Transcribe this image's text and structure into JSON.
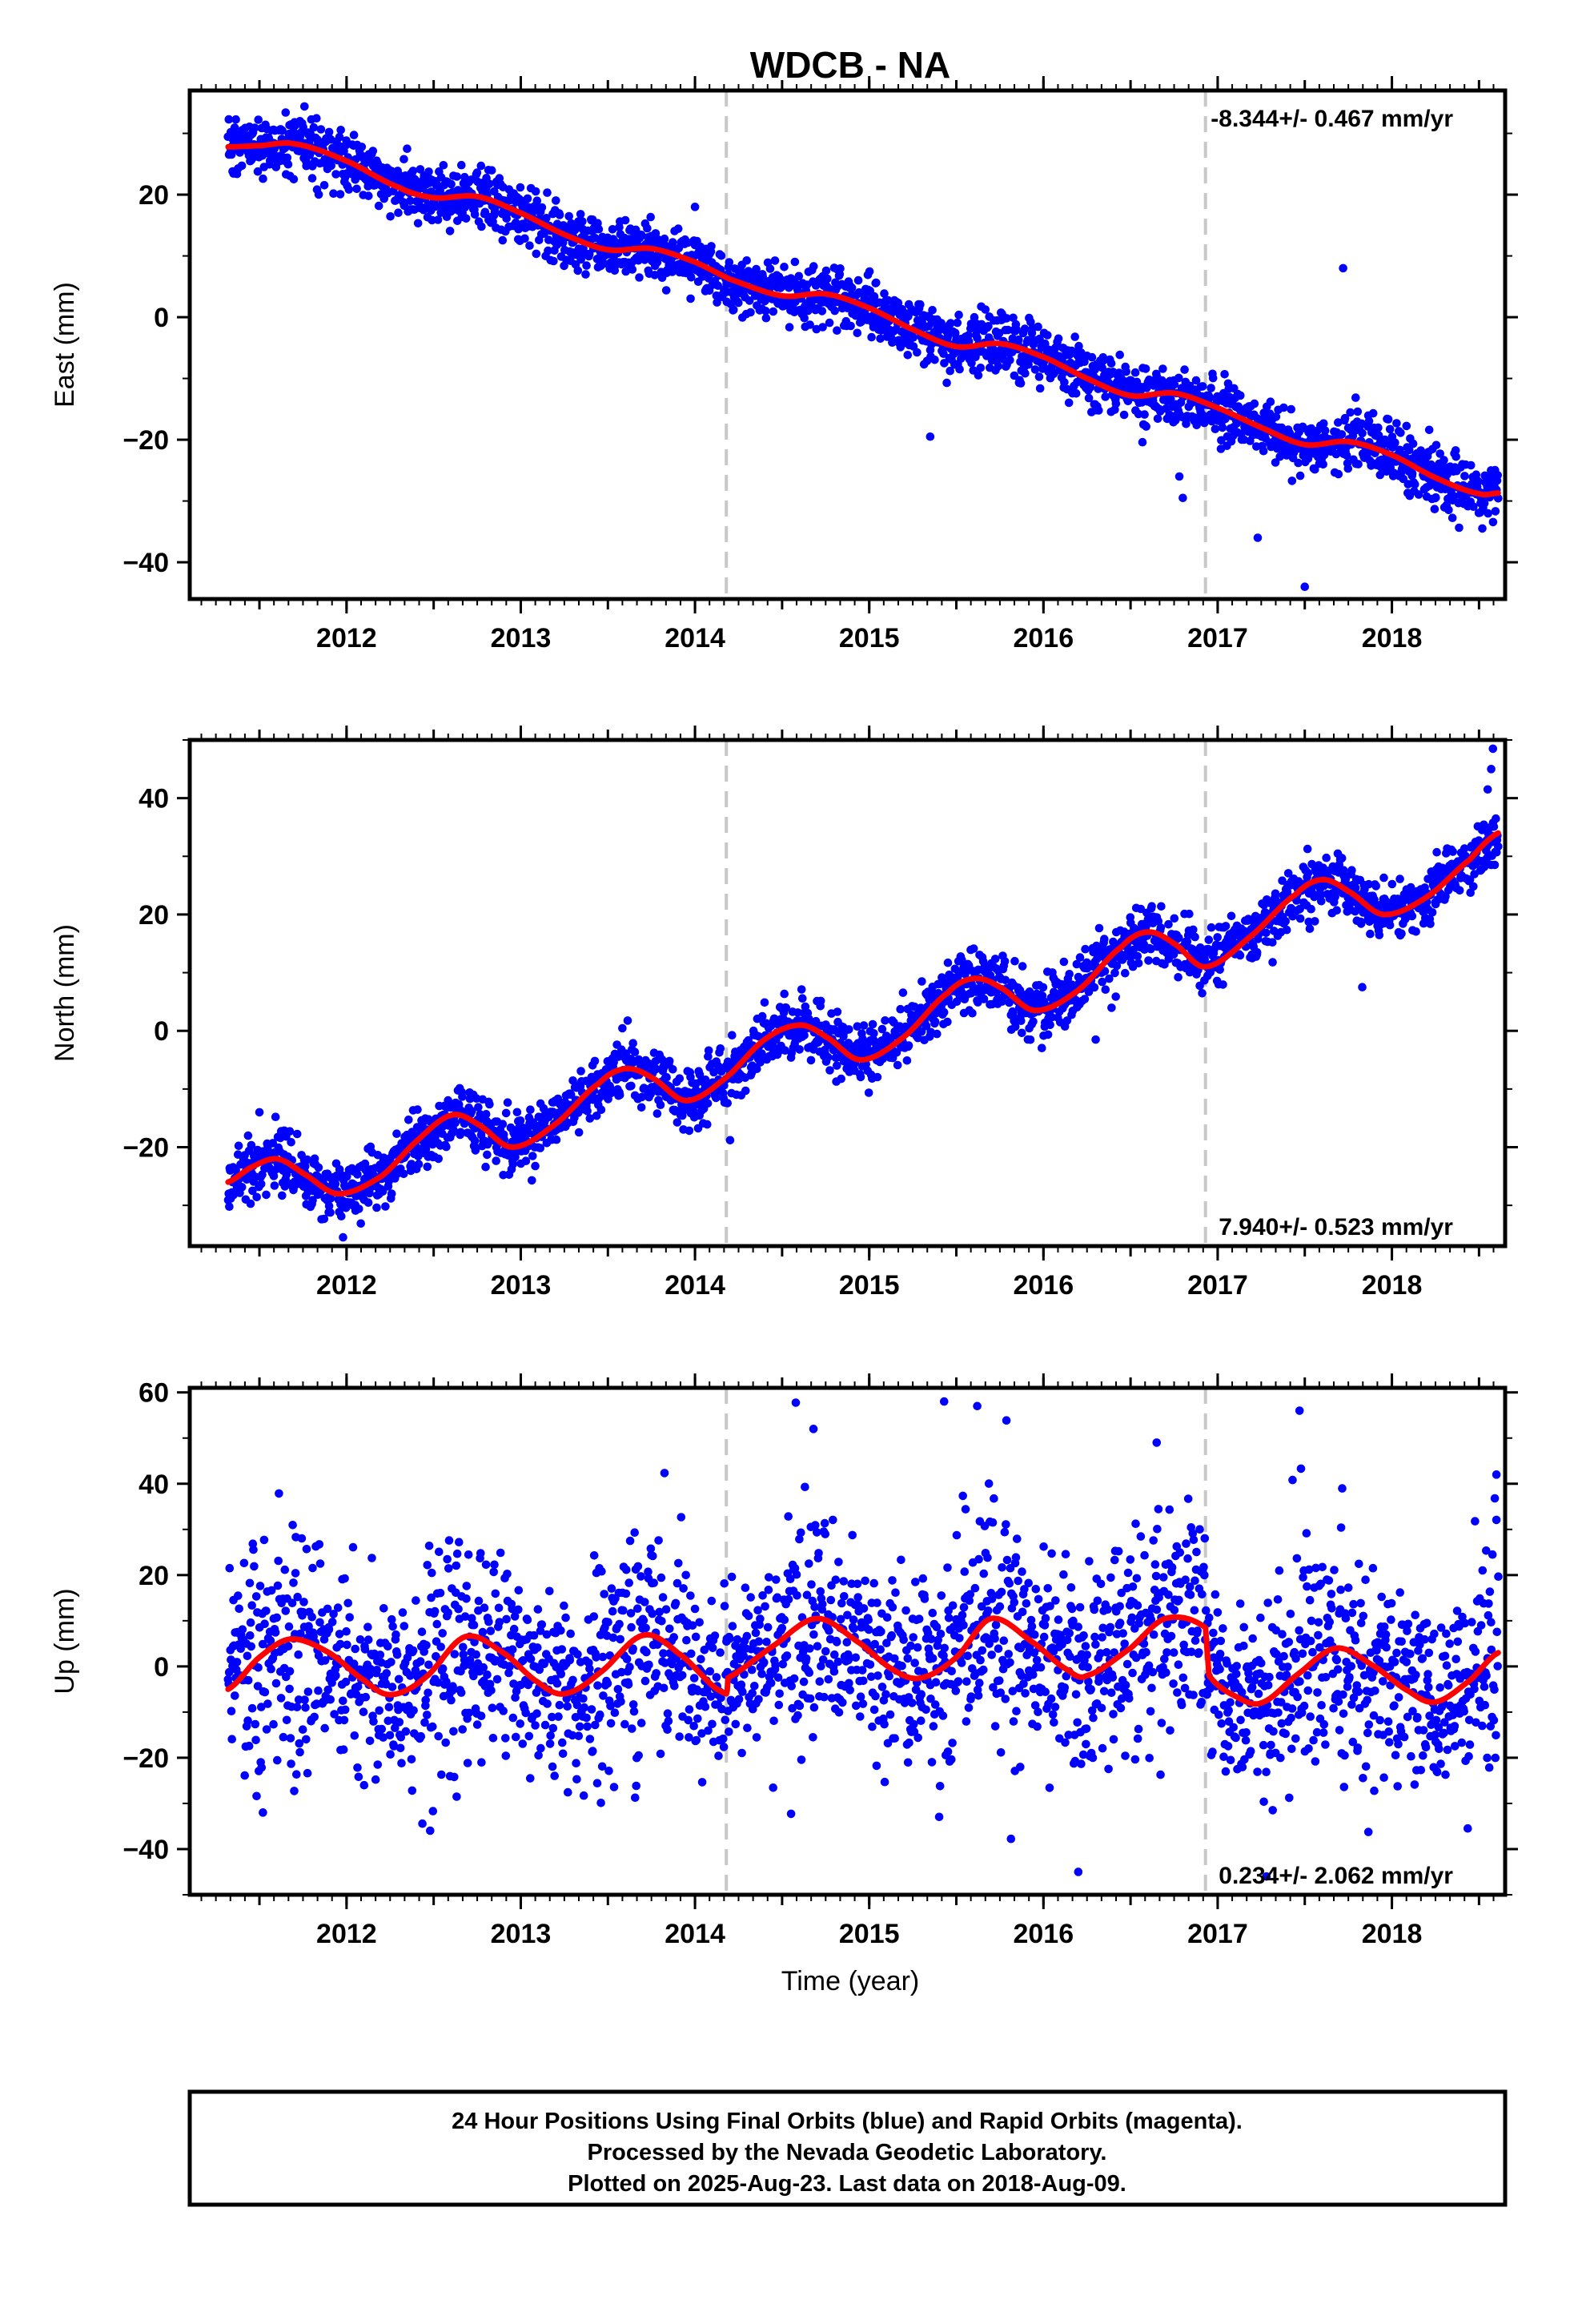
{
  "title": "WDCB - NA",
  "xlabel": "Time (year)",
  "footer": {
    "line1": "24 Hour Positions Using Final Orbits (blue) and Rapid Orbits (magenta).",
    "line2": "Processed by the Nevada Geodetic Laboratory.",
    "line3": "Plotted on 2025-Aug-23. Last data on 2018-Aug-09."
  },
  "colors": {
    "points": "#0000ff",
    "fit": "#ff0000",
    "breaks": "#c8c8c8"
  },
  "chart_data": [
    {
      "type": "scatter",
      "component": "east",
      "ylabel": "East (mm)",
      "rate_text": "-8.344+/- 0.467 mm/yr",
      "rate_position": "top-right",
      "xlim": [
        2011.1,
        2018.65
      ],
      "ylim": [
        -46,
        37
      ],
      "xticks": [
        2012,
        2013,
        2014,
        2015,
        2016,
        2017,
        2018
      ],
      "xtick_labels": [
        "2012",
        "2013",
        "2014",
        "2015",
        "2016",
        "2017",
        "2018"
      ],
      "yticks": [
        -40,
        -20,
        0,
        20
      ],
      "ytick_labels": [
        "−40",
        "−20",
        "0",
        "20"
      ],
      "breaks": [
        2014.18,
        2016.93
      ],
      "x_start": 2011.32,
      "x_end": 2018.61,
      "fit_curve": [
        [
          2011.32,
          27.8
        ],
        [
          2011.5,
          28.0
        ],
        [
          2011.7,
          28.3
        ],
        [
          2012.0,
          25.5
        ],
        [
          2012.3,
          21.2
        ],
        [
          2012.5,
          19.5
        ],
        [
          2012.75,
          19.7
        ],
        [
          2013.0,
          17.0
        ],
        [
          2013.25,
          13.5
        ],
        [
          2013.5,
          11.0
        ],
        [
          2013.75,
          11.2
        ],
        [
          2014.0,
          9.0
        ],
        [
          2014.2,
          6.2
        ],
        [
          2014.5,
          3.5
        ],
        [
          2014.75,
          3.8
        ],
        [
          2015.0,
          1.5
        ],
        [
          2015.25,
          -2.0
        ],
        [
          2015.5,
          -4.8
        ],
        [
          2015.75,
          -4.3
        ],
        [
          2016.0,
          -6.5
        ],
        [
          2016.25,
          -10.0
        ],
        [
          2016.5,
          -12.8
        ],
        [
          2016.75,
          -12.4
        ],
        [
          2017.0,
          -14.8
        ],
        [
          2017.25,
          -18.0
        ],
        [
          2017.5,
          -20.8
        ],
        [
          2017.75,
          -20.3
        ],
        [
          2018.0,
          -22.5
        ],
        [
          2018.25,
          -26.2
        ],
        [
          2018.5,
          -28.8
        ],
        [
          2018.61,
          -28.7
        ]
      ],
      "scatter_spread": 2.4,
      "outliers": [
        [
          2017.72,
          8.0
        ],
        [
          2017.5,
          -44.0
        ],
        [
          2017.23,
          -36.0
        ],
        [
          2016.8,
          -29.5
        ],
        [
          2016.78,
          -26.0
        ],
        [
          2015.35,
          -19.5
        ],
        [
          2014.0,
          18.0
        ]
      ]
    },
    {
      "type": "scatter",
      "component": "north",
      "ylabel": "North (mm)",
      "rate_text": "7.940+/- 0.523 mm/yr",
      "rate_position": "bottom-right",
      "xlim": [
        2011.1,
        2018.65
      ],
      "ylim": [
        -37,
        50
      ],
      "xticks": [
        2012,
        2013,
        2014,
        2015,
        2016,
        2017,
        2018
      ],
      "xtick_labels": [
        "2012",
        "2013",
        "2014",
        "2015",
        "2016",
        "2017",
        "2018"
      ],
      "yticks": [
        -20,
        0,
        20,
        40
      ],
      "ytick_labels": [
        "−20",
        "0",
        "20",
        "40"
      ],
      "breaks": [
        2014.18,
        2016.93
      ],
      "x_start": 2011.32,
      "x_end": 2018.61,
      "fit_curve": [
        [
          2011.32,
          -26.0
        ],
        [
          2011.45,
          -23.5
        ],
        [
          2011.6,
          -22.0
        ],
        [
          2011.75,
          -24.5
        ],
        [
          2011.95,
          -28.0
        ],
        [
          2012.2,
          -25.0
        ],
        [
          2012.4,
          -19.0
        ],
        [
          2012.6,
          -14.5
        ],
        [
          2012.75,
          -16.0
        ],
        [
          2012.95,
          -20.0
        ],
        [
          2013.2,
          -16.0
        ],
        [
          2013.45,
          -9.0
        ],
        [
          2013.6,
          -6.5
        ],
        [
          2013.75,
          -8.0
        ],
        [
          2013.95,
          -12.0
        ],
        [
          2014.18,
          -8.0
        ],
        [
          2014.4,
          -1.5
        ],
        [
          2014.6,
          1.0
        ],
        [
          2014.75,
          -1.0
        ],
        [
          2014.95,
          -5.0
        ],
        [
          2015.2,
          -1.0
        ],
        [
          2015.45,
          6.5
        ],
        [
          2015.6,
          9.0
        ],
        [
          2015.75,
          7.5
        ],
        [
          2015.95,
          3.5
        ],
        [
          2016.2,
          7.0
        ],
        [
          2016.45,
          14.5
        ],
        [
          2016.6,
          17.0
        ],
        [
          2016.75,
          15.0
        ],
        [
          2016.93,
          11.0
        ],
        [
          2017.2,
          16.5
        ],
        [
          2017.45,
          23.5
        ],
        [
          2017.6,
          26.0
        ],
        [
          2017.75,
          24.0
        ],
        [
          2017.95,
          20.0
        ],
        [
          2018.2,
          23.0
        ],
        [
          2018.45,
          29.5
        ],
        [
          2018.61,
          34.0
        ]
      ],
      "scatter_spread": 2.6,
      "outliers": [
        [
          2018.58,
          48.5
        ],
        [
          2018.57,
          45.0
        ],
        [
          2018.55,
          41.5
        ],
        [
          2017.83,
          7.5
        ],
        [
          2016.3,
          -1.5
        ],
        [
          2011.98,
          -35.5
        ],
        [
          2011.5,
          -14.0
        ]
      ]
    },
    {
      "type": "scatter",
      "component": "up",
      "ylabel": "Up (mm)",
      "rate_text": "0.234+/- 2.062 mm/yr",
      "rate_position": "bottom-right",
      "xlim": [
        2011.1,
        2018.65
      ],
      "ylim": [
        -50,
        61
      ],
      "xticks": [
        2012,
        2013,
        2014,
        2015,
        2016,
        2017,
        2018
      ],
      "xtick_labels": [
        "2012",
        "2013",
        "2014",
        "2015",
        "2016",
        "2017",
        "2018"
      ],
      "yticks": [
        -40,
        -20,
        0,
        20,
        40,
        60
      ],
      "ytick_labels": [
        "−40",
        "−20",
        "0",
        "20",
        "40",
        "60"
      ],
      "breaks": [
        2014.18,
        2016.93
      ],
      "x_start": 2011.32,
      "x_end": 2018.61,
      "fit_curve": [
        [
          2011.32,
          -5.0
        ],
        [
          2011.5,
          2.0
        ],
        [
          2011.68,
          6.0
        ],
        [
          2011.9,
          3.0
        ],
        [
          2012.1,
          -3.0
        ],
        [
          2012.25,
          -6.2
        ],
        [
          2012.45,
          -2.5
        ],
        [
          2012.68,
          6.5
        ],
        [
          2012.9,
          3.0
        ],
        [
          2013.1,
          -3.5
        ],
        [
          2013.25,
          -6.0
        ],
        [
          2013.45,
          -1.5
        ],
        [
          2013.7,
          6.8
        ],
        [
          2013.9,
          3.0
        ],
        [
          2014.18,
          -6.0
        ],
        [
          2014.19,
          -2.5
        ],
        [
          2014.45,
          4.5
        ],
        [
          2014.7,
          10.5
        ],
        [
          2014.95,
          5.0
        ],
        [
          2015.15,
          -1.0
        ],
        [
          2015.3,
          -2.5
        ],
        [
          2015.5,
          2.0
        ],
        [
          2015.7,
          10.5
        ],
        [
          2015.95,
          5.0
        ],
        [
          2016.15,
          -1.0
        ],
        [
          2016.25,
          -2.0
        ],
        [
          2016.5,
          4.0
        ],
        [
          2016.7,
          10.5
        ],
        [
          2016.93,
          8.5
        ],
        [
          2016.95,
          -2.0
        ],
        [
          2017.1,
          -6.5
        ],
        [
          2017.25,
          -8.0
        ],
        [
          2017.45,
          -2.0
        ],
        [
          2017.68,
          4.0
        ],
        [
          2017.9,
          0.0
        ],
        [
          2018.1,
          -5.5
        ],
        [
          2018.25,
          -7.8
        ],
        [
          2018.45,
          -3.0
        ],
        [
          2018.61,
          3.0
        ]
      ],
      "scatter_spread": 10.0,
      "outliers": [
        [
          2015.43,
          58.0
        ],
        [
          2017.47,
          56.0
        ],
        [
          2015.62,
          57.0
        ],
        [
          2014.68,
          52.0
        ],
        [
          2016.65,
          49.0
        ],
        [
          2016.2,
          -45.0
        ],
        [
          2017.28,
          -46.0
        ],
        [
          2011.52,
          -32.0
        ],
        [
          2018.6,
          42.0
        ]
      ]
    }
  ]
}
